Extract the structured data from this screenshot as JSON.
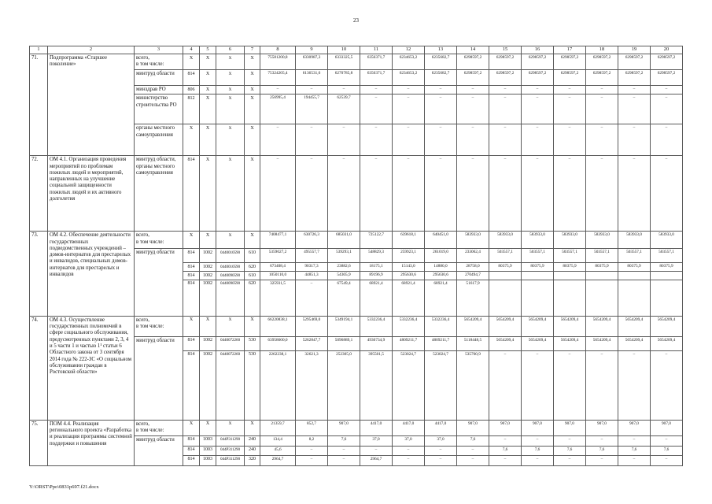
{
  "page": {
    "number": "23",
    "footer": "Y:\\ORST\\Ppo\\0831p697.f21.docx"
  },
  "table": {
    "header": [
      "1",
      "2",
      "3",
      "4",
      "5",
      "6",
      "7",
      "8",
      "9",
      "10",
      "11",
      "12",
      "13",
      "14",
      "15",
      "16",
      "17",
      "18",
      "19",
      "20"
    ],
    "blocks": [
      {
        "num": "71.",
        "name": "Подпрограмма «Старшее поколение»",
        "rows": [
          {
            "executor": "всего,\nв том числе:",
            "exspan": 1,
            "grbs": "X",
            "rzpr": "X",
            "csr": "X",
            "vr": "X",
            "values": [
              "75581200,8",
              "6330987,3",
              "6333325,5",
              "6356371,7",
              "6234653,2",
              "6235682,7",
              "6298597,2",
              "6298597,2",
              "6298597,2",
              "6298597,2",
              "6298597,2",
              "6298597,2",
              "6298597,2"
            ]
          },
          {
            "executor": "минтруд области",
            "exspan": 1,
            "grbs": "814",
            "rzpr": "X",
            "csr": "X",
            "vr": "X",
            "values": [
              "75324205,4",
              "6136531,6",
              "6270785,8",
              "6356371,7",
              "6234653,2",
              "6235682,7",
              "6298597,2",
              "6298597,2",
              "6298597,2",
              "6298597,2",
              "6298597,2",
              "6298597,2",
              "6298597,2"
            ]
          },
          {
            "executor": "минздрав РО",
            "exspan": 1,
            "grbs": "806",
            "rzpr": "X",
            "csr": "X",
            "vr": "X",
            "values": [
              "–",
              "–",
              "–",
              "–",
              "–",
              "–",
              "–",
              "–",
              "–",
              "–",
              "–",
              "–",
              "–"
            ]
          },
          {
            "executor": "министерство строительства РО",
            "exspan": 1,
            "grbs": "812",
            "rzpr": "X",
            "csr": "X",
            "vr": "X",
            "values": [
              "256995,4",
              "194455,7",
              "62539,7",
              "–",
              "–",
              "–",
              "–",
              "–",
              "–",
              "–",
              "–",
              "–",
              "–"
            ]
          },
          {
            "executor": "органы местного самоуправления",
            "exspan": 1,
            "grbs": "X",
            "rzpr": "X",
            "csr": "X",
            "vr": "X",
            "values": [
              "–",
              "–",
              "–",
              "–",
              "–",
              "–",
              "–",
              "–",
              "–",
              "–",
              "–",
              "–",
              "–"
            ]
          }
        ]
      },
      {
        "num": "72.",
        "name": "ОМ 4.1. Организация проведения мероприятий по проблемам пожилых людей и мероприятий, направленных на улучшение социальной защищенности пожилых людей и их активного долголетия",
        "rows": [
          {
            "executor": "минтруд области, органы местного самоуправления",
            "exspan": 1,
            "grbs": "814",
            "rzpr": "X",
            "csr": "X",
            "vr": "X",
            "values": [
              "–",
              "–",
              "–",
              "–",
              "–",
              "–",
              "–",
              "–",
              "–",
              "–",
              "–",
              "–",
              "–"
            ]
          }
        ]
      },
      {
        "num": "73.",
        "name": "ОМ 4.2. Обеспечение деятельности государственных подведомственных учреждений – домов-интернатов для престарелых и инвалидов, специальных домов-интернатов для престарелых и инвалидов",
        "rows": [
          {
            "executor": "всего,\nв том числе:",
            "exspan": 1,
            "grbs": "X",
            "rzpr": "X",
            "csr": "X",
            "vr": "X",
            "values": [
              "7408477,1",
              "630726,3",
              "685031,0",
              "725122,7",
              "639618,1",
              "640451,0",
              "583933,0",
              "583933,0",
              "583933,0",
              "583933,0",
              "583933,0",
              "583933,0",
              "583933,0"
            ]
          },
          {
            "executor": "минтруд области",
            "exspan": 4,
            "grbs": "814",
            "rzpr": "1002",
            "csr": "0440010590",
            "vr": "610",
            "values": [
              "5359027,2",
              "495557,7",
              "539293,1",
              "548829,3",
              "259923,1",
              "261019,0",
              "233062,4",
              "503557,1",
              "503557,1",
              "503557,1",
              "503557,1",
              "503557,1",
              "503557,1"
            ]
          },
          {
            "grbs": "814",
            "rzpr": "1002",
            "csr": "0440010590",
            "vr": "620",
            "values": [
              "673408,4",
              "90317,3",
              "23882,6",
              "18175,1",
              "15143,0",
              "14880,0",
              "28758,0",
              "80375,9",
              "80375,9",
              "80375,9",
              "80375,9",
              "80375,9",
              "80375,9"
            ]
          },
          {
            "grbs": "814",
            "rzpr": "1002",
            "csr": "0440090590",
            "vr": "610",
            "values": [
              "1050110,0",
              "44851,3",
              "54305,9",
              "89196,9",
              "295630,6",
              "295630,6",
              "270494,7",
              "",
              "",
              "",
              "",
              "",
              ""
            ]
          },
          {
            "grbs": "814",
            "rzpr": "1002",
            "csr": "0440090590",
            "vr": "620",
            "values": [
              "325931,5",
              "–",
              "67549,4",
              "68921,4",
              "68921,4",
              "68921,4",
              "51617,9",
              "",
              "",
              "",
              "",
              "",
              ""
            ]
          }
        ]
      },
      {
        "num": "74.",
        "name": "ОМ 4.3. Осуществление государственных полномочий в сфере социального обслуживания, предусмотренных пунктами 2, 3, 4 и 5 части 1 и частью 1¹ статьи 6 Областного закона от 3 сентября 2014 года № 222-ЗС «О социальном обслуживании граждан в Ростовской области»",
        "rows": [
          {
            "executor": "всего,\nв том числе:",
            "exspan": 1,
            "grbs": "X",
            "rzpr": "X",
            "csr": "X",
            "vr": "X",
            "values": [
              "66220838,1",
              "5295469,0",
              "5349194,1",
              "5332236,4",
              "5332236,4",
              "5332236,4",
              "5654209,4",
              "5654209,4",
              "5654209,4",
              "5654209,4",
              "5654209,4",
              "5654209,4",
              "5654209,4"
            ]
          },
          {
            "executor": "минтруд области",
            "exspan": 2,
            "grbs": "814",
            "rzpr": "1002",
            "csr": "0440072260",
            "vr": "530",
            "values": [
              "63958600,0",
              "5262847,7",
              "5096889,1",
              "4936734,9",
              "4809211,7",
              "4809211,7",
              "5118448,5",
              "5654209,4",
              "5654209,4",
              "5654209,4",
              "5654209,4",
              "5654209,4",
              "5654209,4"
            ]
          },
          {
            "grbs": "814",
            "rzpr": "1002",
            "csr": "0440072260",
            "vr": "530",
            "values": [
              "2262238,1",
              "32621,3",
              "252305,0",
              "395501,5",
              "523024,7",
              "523024,7",
              "535760,9",
              "–",
              "–",
              "–",
              "–",
              "–",
              "–"
            ]
          }
        ]
      },
      {
        "num": "75.",
        "name": "ПОМ 4.4. Реализация регионального проекта «Разработка и реализация программы системной поддержки и повышения",
        "rows": [
          {
            "executor": "всего,\nв том числе:",
            "exspan": 1,
            "grbs": "X",
            "rzpr": "X",
            "csr": "X",
            "vr": "X",
            "values": [
              "21359,7",
              "852,7",
              "907,0",
              "4417,0",
              "4417,0",
              "4417,0",
              "907,0",
              "907,0",
              "907,0",
              "907,0",
              "907,0",
              "907,0",
              "907,0"
            ]
          },
          {
            "executor": "минтруд области",
            "exspan": 3,
            "grbs": "814",
            "rzpr": "1003",
            "csr": "044Р311290",
            "vr": "240",
            "values": [
              "134,4",
              "8,2",
              "7,6",
              "37,0",
              "37,0",
              "37,0",
              "7,6",
              "–",
              "–",
              "–",
              "–",
              "–",
              "–"
            ]
          },
          {
            "grbs": "814",
            "rzpr": "1003",
            "csr": "044Р311290",
            "vr": "240",
            "values": [
              "45,6",
              "–",
              "–",
              "–",
              "–",
              "–",
              "–",
              "7,6",
              "7,6",
              "7,6",
              "7,6",
              "7,6",
              "7,6"
            ]
          },
          {
            "grbs": "814",
            "rzpr": "1003",
            "csr": "044Р311290",
            "vr": "320",
            "values": [
              "2964,7",
              "–",
              "–",
              "2964,7",
              "–",
              "–",
              "–",
              "–",
              "–",
              "–",
              "–",
              "–",
              "–"
            ]
          }
        ]
      }
    ]
  }
}
